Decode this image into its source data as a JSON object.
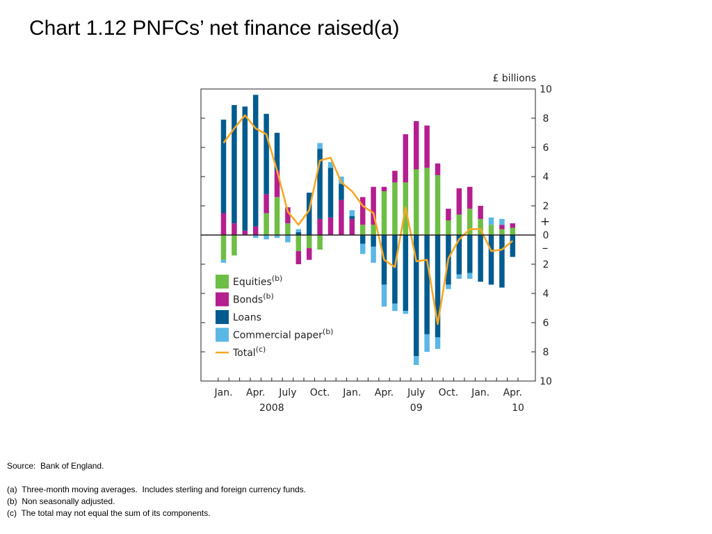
{
  "title": "Chart 1.12  PNFCs’ net finance raised(a)",
  "notes": {
    "source": "Source:  Bank of England.",
    "a": "(a)  Three-month moving averages.  Includes sterling and foreign currency funds.",
    "b": "(b)  Non seasonally adjusted.",
    "c": "(c)  The total may not equal the sum of its components."
  },
  "colors": {
    "equities": "#6dbe45",
    "bonds": "#b41e8e",
    "loans": "#005b8f",
    "commercial_paper": "#5bb7e5",
    "total": "#f7a823",
    "axis": "#231f20"
  },
  "chart_data": {
    "type": "bar",
    "stacked": true,
    "unit_label": "£ billions",
    "ylim": [
      -10,
      10
    ],
    "yticks": [
      10,
      8,
      6,
      4,
      2,
      0,
      2,
      4,
      6,
      8,
      10
    ],
    "ytick_values": [
      10,
      8,
      6,
      4,
      2,
      0,
      -2,
      -4,
      -6,
      -8,
      -10
    ],
    "sign_plus": "+",
    "sign_minus": "–",
    "x_tick_labels": [
      {
        "label": "Jan.",
        "index": 0
      },
      {
        "label": "Apr.",
        "index": 3
      },
      {
        "label": "July",
        "index": 6
      },
      {
        "label": "Oct.",
        "index": 9
      },
      {
        "label": "Jan.",
        "index": 12
      },
      {
        "label": "Apr.",
        "index": 15
      },
      {
        "label": "July",
        "index": 18
      },
      {
        "label": "Oct.",
        "index": 21
      },
      {
        "label": "Jan.",
        "index": 24
      },
      {
        "label": "Apr.",
        "index": 27
      }
    ],
    "year_labels": [
      {
        "label": "2008",
        "index": 4.5
      },
      {
        "label": "09",
        "index": 18
      },
      {
        "label": "10",
        "index": 27.5
      }
    ],
    "series": [
      {
        "name": "Equities",
        "sup": "(b)",
        "key": "equities",
        "values": [
          -1.7,
          -1.4,
          0,
          0,
          1.5,
          2.6,
          0.8,
          -1.1,
          -0.9,
          -1.0,
          0,
          0,
          0,
          0.7,
          0.7,
          3.0,
          3.6,
          3.6,
          4.5,
          4.6,
          4.1,
          1.0,
          1.4,
          1.8,
          1.1,
          0.7,
          0.4,
          0.5
        ]
      },
      {
        "name": "Bonds",
        "sup": "(b)",
        "key": "bonds",
        "values": [
          1.5,
          0.8,
          0.3,
          0.6,
          1.3,
          1.8,
          1.1,
          -0.9,
          -0.8,
          1.1,
          1.2,
          2.4,
          1.1,
          1.9,
          2.6,
          0.3,
          0.8,
          3.3,
          3.3,
          2.9,
          0.8,
          0.8,
          1.8,
          1.5,
          0.9,
          0,
          0.3,
          0.3
        ]
      },
      {
        "name": "Loans",
        "sup": "",
        "key": "loans",
        "values": [
          6.4,
          8.1,
          8.5,
          9.0,
          5.5,
          2.6,
          0,
          0.2,
          2.9,
          4.8,
          3.4,
          1.1,
          0.2,
          -0.6,
          -0.8,
          -3.4,
          -4.7,
          -5.2,
          -8.3,
          -6.8,
          -7.0,
          -3.4,
          -2.7,
          -2.6,
          -3.2,
          -3.4,
          -3.6,
          -1.5
        ]
      },
      {
        "name": "Commercial paper",
        "sup": "(b)",
        "key": "commercial_paper",
        "values": [
          -0.2,
          0,
          0,
          -0.2,
          -0.3,
          -0.2,
          -0.5,
          0.2,
          0,
          0.4,
          0.4,
          0.5,
          0.4,
          -0.7,
          -1.1,
          -1.5,
          -0.5,
          -0.2,
          -0.6,
          -1.2,
          -0.8,
          -0.3,
          -0.3,
          -0.4,
          0,
          0.5,
          0.4,
          0
        ]
      },
      {
        "name": "Total",
        "sup": "(c)",
        "key": "total",
        "values": [
          6.3,
          7.3,
          8.2,
          7.3,
          6.9,
          4.4,
          1.6,
          0.7,
          1.7,
          5.1,
          5.3,
          3.6,
          3.0,
          2.0,
          1.5,
          -1.7,
          -2.2,
          1.9,
          -1.8,
          -1.7,
          -6.1,
          -1.6,
          -0.3,
          0.4,
          0.4,
          -1.1,
          -1.0,
          -0.4
        ]
      }
    ]
  }
}
